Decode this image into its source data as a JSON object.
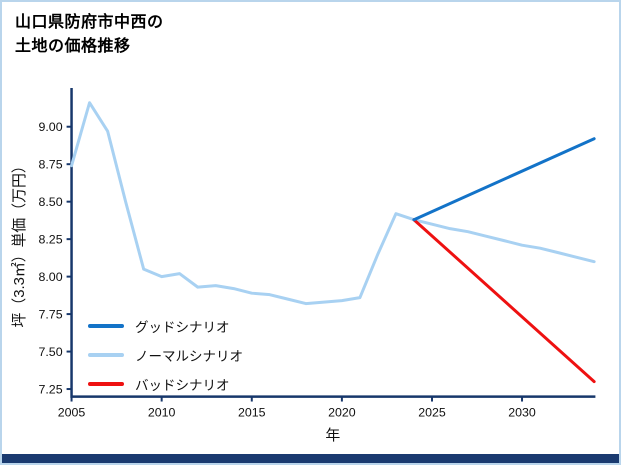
{
  "title": {
    "line1": "山口県防府市中西の",
    "line2": "土地の価格推移"
  },
  "chart_data": {
    "type": "line",
    "title": "山口県防府市中西の土地の価格推移",
    "xlabel": "年",
    "ylabel": "坪（3.3㎡）単価（万円）",
    "xlim": [
      2005,
      2034
    ],
    "ylim": [
      7.2,
      9.25
    ],
    "xticks": [
      2005,
      2010,
      2015,
      2020,
      2025,
      2030
    ],
    "yticks": [
      7.25,
      7.5,
      7.75,
      8,
      8.25,
      8.5,
      8.75,
      9
    ],
    "grid": false,
    "legend_position": "lower-left",
    "axis_color": "#17376b",
    "series": [
      {
        "id": "normal",
        "name": "ノーマルシナリオ",
        "color": "#a8d1f2",
        "x": [
          2005,
          2006,
          2007,
          2008,
          2009,
          2010,
          2011,
          2012,
          2013,
          2014,
          2015,
          2016,
          2017,
          2018,
          2019,
          2020,
          2021,
          2022,
          2023,
          2024,
          2025,
          2026,
          2027,
          2028,
          2029,
          2030,
          2031,
          2032,
          2033,
          2034
        ],
        "values": [
          8.74,
          9.16,
          8.97,
          8.5,
          8.05,
          8.0,
          8.02,
          7.93,
          7.94,
          7.92,
          7.89,
          7.88,
          7.85,
          7.82,
          7.83,
          7.84,
          7.86,
          8.15,
          8.42,
          8.38,
          8.35,
          8.32,
          8.3,
          8.27,
          8.24,
          8.21,
          8.19,
          8.16,
          8.13,
          8.1
        ]
      },
      {
        "id": "bad",
        "name": "バッドシナリオ",
        "color": "#ee1111",
        "x": [
          2024,
          2034
        ],
        "values": [
          8.38,
          7.3
        ]
      },
      {
        "id": "good",
        "name": "グッドシナリオ",
        "color": "#1373c8",
        "x": [
          2024,
          2034
        ],
        "values": [
          8.38,
          8.92
        ]
      }
    ],
    "legend": [
      {
        "label": "グッドシナリオ",
        "color": "#1373c8"
      },
      {
        "label": "ノーマルシナリオ",
        "color": "#a8d1f2"
      },
      {
        "label": "バッドシナリオ",
        "color": "#ee1111"
      }
    ]
  }
}
